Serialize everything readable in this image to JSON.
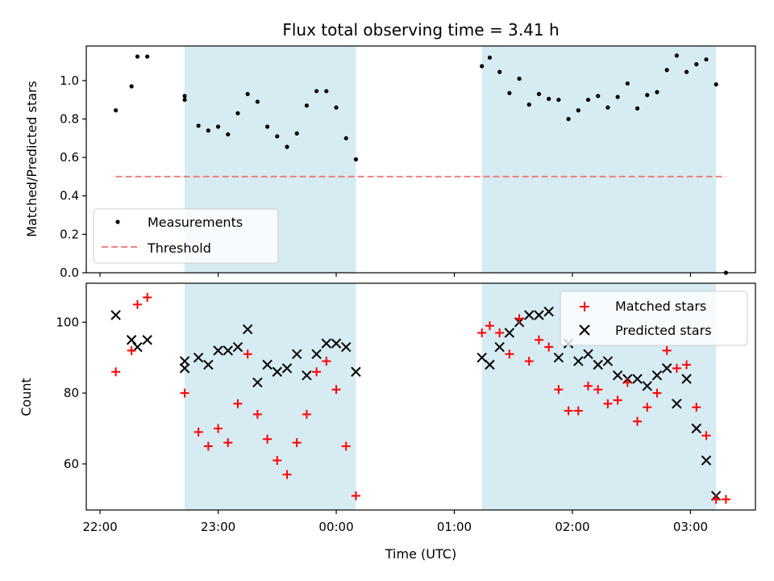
{
  "chart_data": [
    {
      "type": "scatter",
      "title": "Flux total observing time = 3.41 h",
      "xlabel": "",
      "ylabel": "Matched/Predicted stars",
      "ylim": [
        0,
        1.18
      ],
      "yticks": [
        0.0,
        0.2,
        0.4,
        0.6,
        0.8,
        1.0
      ],
      "ytick_labels": [
        "0.0",
        "0.2",
        "0.4",
        "0.6",
        "0.8",
        "1.0"
      ],
      "legend": {
        "placement": "lower-left",
        "entries": [
          "Measurements",
          "Threshold"
        ]
      },
      "series": [
        {
          "name": "Measurements",
          "marker": "dot",
          "color": "#000000",
          "points": [
            [
              "22:08",
              0.845
            ],
            [
              "22:16",
              0.97
            ],
            [
              "22:19",
              1.125
            ],
            [
              "22:24",
              1.125
            ],
            [
              "22:43",
              0.92
            ],
            [
              "22:43",
              0.9
            ],
            [
              "22:50",
              0.765
            ],
            [
              "22:55",
              0.74
            ],
            [
              "23:00",
              0.76
            ],
            [
              "23:05",
              0.72
            ],
            [
              "23:10",
              0.83
            ],
            [
              "23:15",
              0.93
            ],
            [
              "23:20",
              0.89
            ],
            [
              "23:25",
              0.76
            ],
            [
              "23:30",
              0.71
            ],
            [
              "23:35",
              0.655
            ],
            [
              "23:40",
              0.725
            ],
            [
              "23:45",
              0.87
            ],
            [
              "23:50",
              0.945
            ],
            [
              "23:55",
              0.945
            ],
            [
              "00:00",
              0.86
            ],
            [
              "00:05",
              0.7
            ],
            [
              "00:10",
              0.59
            ],
            [
              "01:14",
              1.075
            ],
            [
              "01:18",
              1.12
            ],
            [
              "01:23",
              1.045
            ],
            [
              "01:28",
              0.935
            ],
            [
              "01:33",
              1.01
            ],
            [
              "01:38",
              0.875
            ],
            [
              "01:43",
              0.93
            ],
            [
              "01:48",
              0.905
            ],
            [
              "01:53",
              0.9
            ],
            [
              "01:58",
              0.8
            ],
            [
              "02:03",
              0.845
            ],
            [
              "02:08",
              0.9
            ],
            [
              "02:13",
              0.92
            ],
            [
              "02:18",
              0.86
            ],
            [
              "02:23",
              0.915
            ],
            [
              "02:28",
              0.985
            ],
            [
              "02:33",
              0.855
            ],
            [
              "02:38",
              0.925
            ],
            [
              "02:43",
              0.94
            ],
            [
              "02:48",
              1.055
            ],
            [
              "02:53",
              1.13
            ],
            [
              "02:58",
              1.045
            ],
            [
              "03:03",
              1.085
            ],
            [
              "03:08",
              1.11
            ],
            [
              "03:13",
              0.98
            ],
            [
              "03:18",
              0.0
            ]
          ]
        },
        {
          "name": "Threshold",
          "line_style": "dashed",
          "color": "#f08080",
          "points": [
            [
              "22:08",
              0.5
            ],
            [
              "03:18",
              0.5
            ]
          ]
        }
      ],
      "shaded_spans": [
        [
          "22:43",
          "00:10"
        ],
        [
          "01:14",
          "03:13"
        ]
      ],
      "shade_color": "#add8e6"
    },
    {
      "type": "scatter",
      "title": "",
      "xlabel": "Time (UTC)",
      "ylabel": "Count",
      "ylim": [
        47,
        111
      ],
      "yticks": [
        60,
        80,
        100
      ],
      "ytick_labels": [
        "60",
        "80",
        "100"
      ],
      "xlim": [
        "21:53",
        "03:33"
      ],
      "xticks": [
        "22:00",
        "23:00",
        "00:00",
        "01:00",
        "02:00",
        "03:00"
      ],
      "xtick_labels": [
        "22:00",
        "23:00",
        "00:00",
        "01:00",
        "02:00",
        "03:00"
      ],
      "legend": {
        "placement": "upper-right",
        "entries": [
          "Matched stars",
          "Predicted stars"
        ]
      },
      "series": [
        {
          "name": "Matched stars",
          "marker": "plus",
          "color": "#ff0000",
          "points": [
            [
              "22:08",
              86
            ],
            [
              "22:16",
              92
            ],
            [
              "22:19",
              105
            ],
            [
              "22:24",
              107
            ],
            [
              "22:43",
              80
            ],
            [
              "22:50",
              69
            ],
            [
              "22:55",
              65
            ],
            [
              "23:00",
              70
            ],
            [
              "23:05",
              66
            ],
            [
              "23:10",
              77
            ],
            [
              "23:15",
              91
            ],
            [
              "23:20",
              74
            ],
            [
              "23:25",
              67
            ],
            [
              "23:30",
              61
            ],
            [
              "23:35",
              57
            ],
            [
              "23:40",
              66
            ],
            [
              "23:45",
              74
            ],
            [
              "23:50",
              86
            ],
            [
              "23:55",
              89
            ],
            [
              "00:00",
              81
            ],
            [
              "00:05",
              65
            ],
            [
              "00:10",
              51
            ],
            [
              "01:14",
              97
            ],
            [
              "01:18",
              99
            ],
            [
              "01:23",
              97
            ],
            [
              "01:28",
              91
            ],
            [
              "01:33",
              101
            ],
            [
              "01:38",
              89
            ],
            [
              "01:43",
              95
            ],
            [
              "01:48",
              93
            ],
            [
              "01:53",
              81
            ],
            [
              "01:58",
              75
            ],
            [
              "02:03",
              75
            ],
            [
              "02:08",
              82
            ],
            [
              "02:13",
              81
            ],
            [
              "02:18",
              77
            ],
            [
              "02:23",
              78
            ],
            [
              "02:28",
              83
            ],
            [
              "02:33",
              72
            ],
            [
              "02:38",
              76
            ],
            [
              "02:43",
              80
            ],
            [
              "02:48",
              92
            ],
            [
              "02:53",
              87
            ],
            [
              "02:58",
              88
            ],
            [
              "03:03",
              76
            ],
            [
              "03:08",
              68
            ],
            [
              "03:13",
              50
            ],
            [
              "03:18",
              50
            ]
          ]
        },
        {
          "name": "Predicted stars",
          "marker": "x",
          "color": "#000000",
          "points": [
            [
              "22:08",
              102
            ],
            [
              "22:16",
              95
            ],
            [
              "22:19",
              93
            ],
            [
              "22:24",
              95
            ],
            [
              "22:43",
              89
            ],
            [
              "22:43",
              87
            ],
            [
              "22:50",
              90
            ],
            [
              "22:55",
              88
            ],
            [
              "23:00",
              92
            ],
            [
              "23:05",
              92
            ],
            [
              "23:10",
              93
            ],
            [
              "23:15",
              98
            ],
            [
              "23:20",
              83
            ],
            [
              "23:25",
              88
            ],
            [
              "23:30",
              86
            ],
            [
              "23:35",
              87
            ],
            [
              "23:40",
              91
            ],
            [
              "23:45",
              85
            ],
            [
              "23:50",
              91
            ],
            [
              "23:55",
              94
            ],
            [
              "00:00",
              94
            ],
            [
              "00:05",
              93
            ],
            [
              "00:10",
              86
            ],
            [
              "01:14",
              90
            ],
            [
              "01:18",
              88
            ],
            [
              "01:23",
              93
            ],
            [
              "01:28",
              97
            ],
            [
              "01:33",
              100
            ],
            [
              "01:38",
              102
            ],
            [
              "01:43",
              102
            ],
            [
              "01:48",
              103
            ],
            [
              "01:53",
              90
            ],
            [
              "01:58",
              94
            ],
            [
              "02:03",
              89
            ],
            [
              "02:08",
              91
            ],
            [
              "02:13",
              88
            ],
            [
              "02:18",
              89
            ],
            [
              "02:23",
              85
            ],
            [
              "02:28",
              84
            ],
            [
              "02:33",
              84
            ],
            [
              "02:38",
              82
            ],
            [
              "02:43",
              85
            ],
            [
              "02:48",
              87
            ],
            [
              "02:53",
              77
            ],
            [
              "02:58",
              84
            ],
            [
              "03:03",
              70
            ],
            [
              "03:08",
              61
            ],
            [
              "03:13",
              51
            ]
          ]
        }
      ],
      "shaded_spans": [
        [
          "22:43",
          "00:10"
        ],
        [
          "01:14",
          "03:13"
        ]
      ],
      "shade_color": "#add8e6"
    }
  ]
}
